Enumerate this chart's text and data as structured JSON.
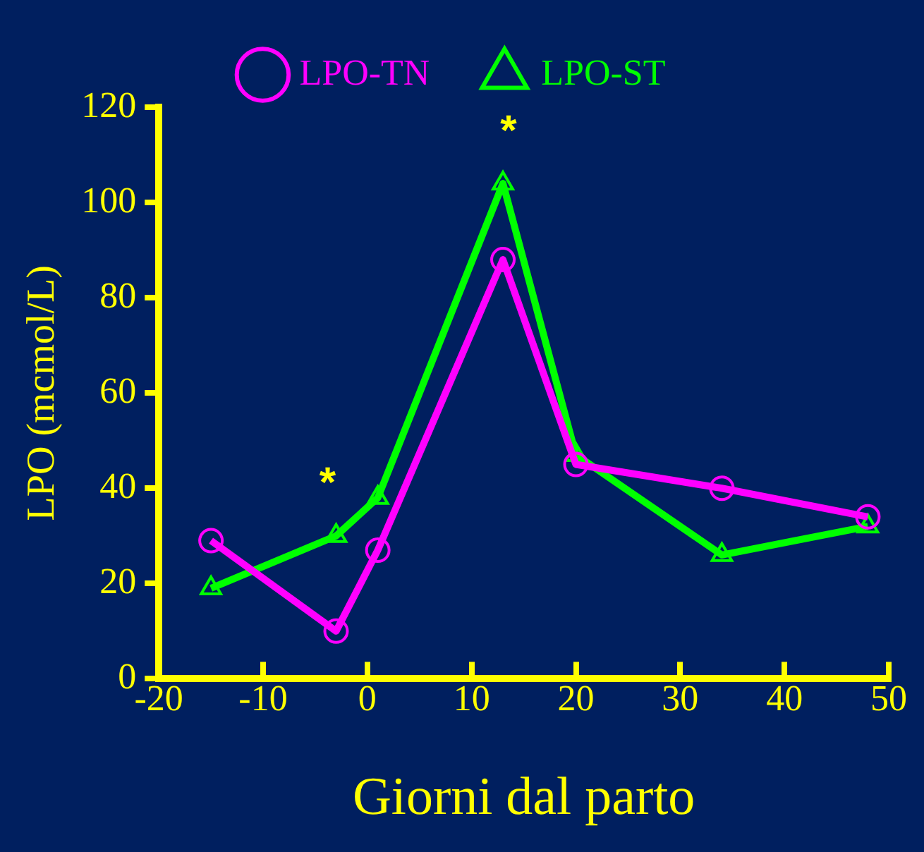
{
  "chart_data": {
    "type": "line",
    "xlabel": "Giorni dal parto",
    "ylabel": "LPO (mcmol/L)",
    "x": [
      -15,
      -3,
      1,
      13,
      20,
      34,
      48
    ],
    "series": [
      {
        "name": "LPO-TN",
        "color": "#ff00ff",
        "marker": "circle",
        "values": [
          29,
          10,
          27,
          88,
          45,
          40,
          34
        ]
      },
      {
        "name": "LPO-ST",
        "color": "#00ff00",
        "marker": "triangle",
        "values": [
          19,
          30,
          38,
          104,
          47,
          26,
          32
        ]
      }
    ],
    "xlim": [
      -20,
      50
    ],
    "xticks": [
      -20,
      -10,
      0,
      10,
      20,
      30,
      40,
      50
    ],
    "ylim": [
      0,
      120
    ],
    "yticks": [
      0,
      20,
      40,
      60,
      80,
      100,
      120
    ],
    "annotations": [
      {
        "text": "*",
        "x": -3,
        "y": 30
      },
      {
        "text": "*",
        "x": 13,
        "y": 104
      }
    ],
    "grid": false,
    "legend": "top"
  }
}
